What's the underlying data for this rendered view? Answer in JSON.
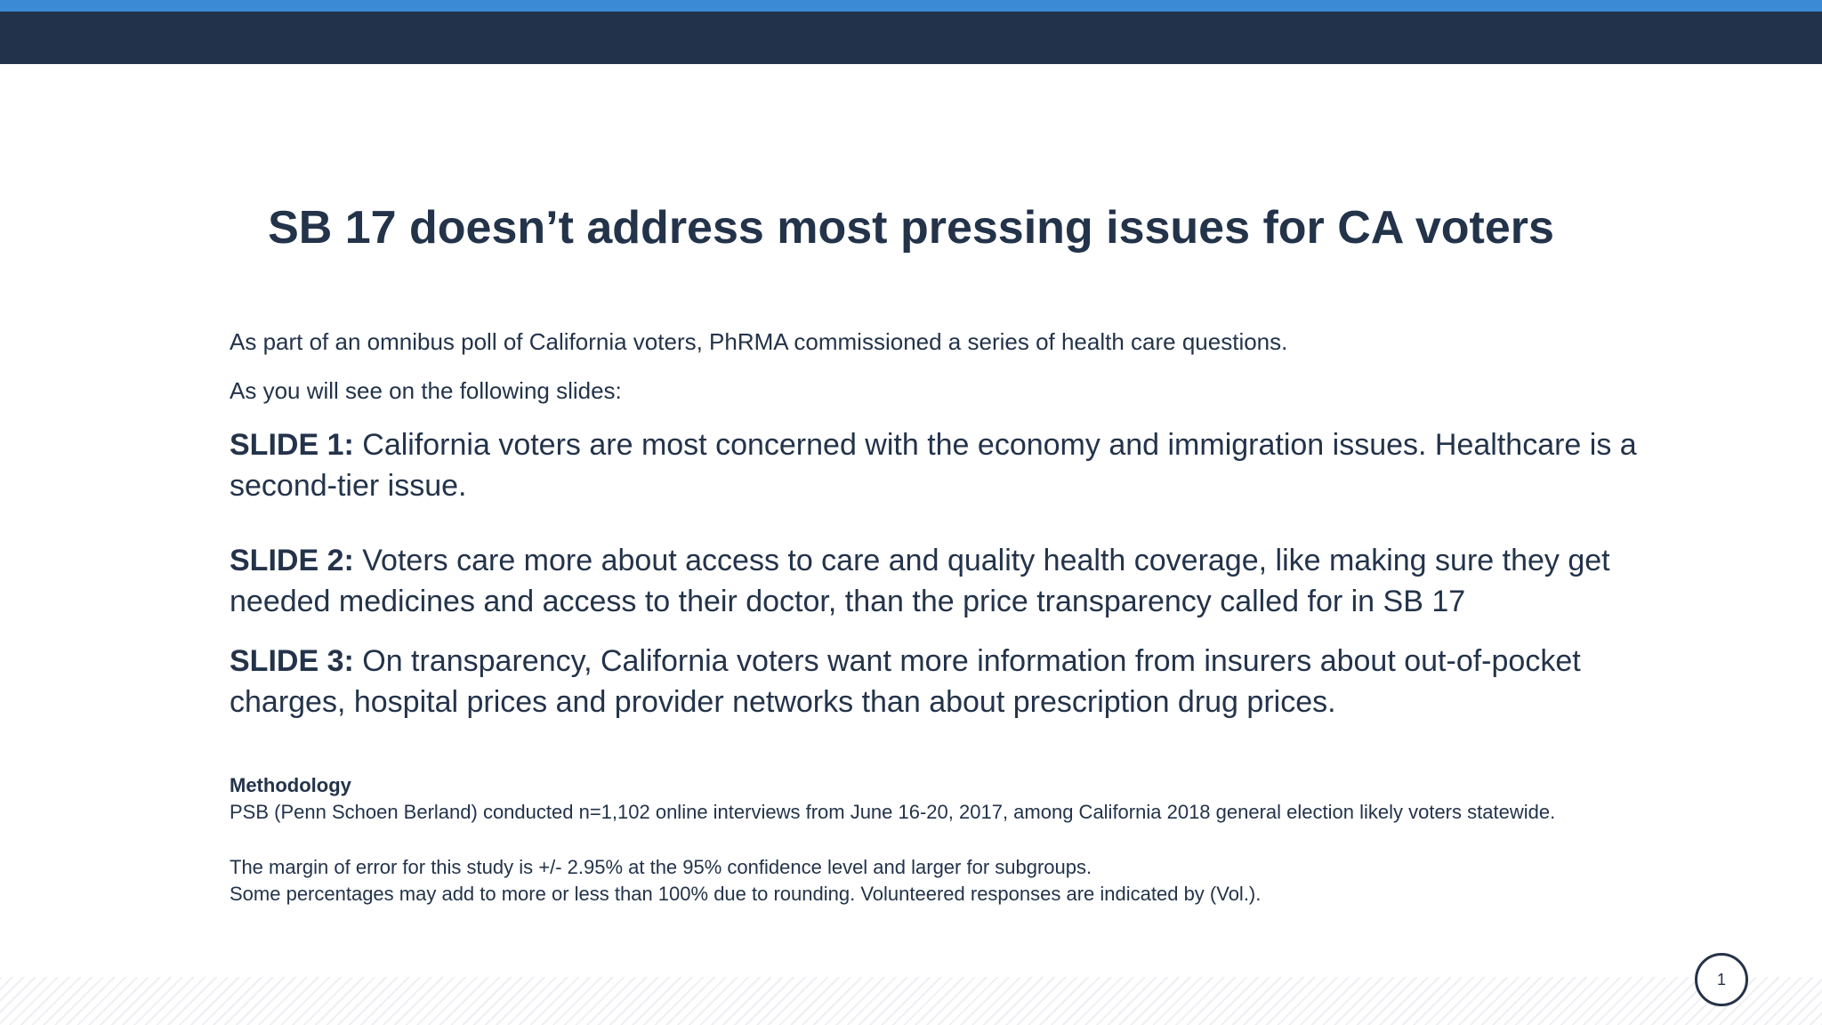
{
  "colors": {
    "accent_stripe": "#3a8ad6",
    "header_band": "#22324a",
    "text": "#23334a"
  },
  "title": "SB 17 doesn’t address most pressing issues for CA voters",
  "intro": [
    "As part of an omnibus poll of California voters, PhRMA commissioned a series of health care questions.",
    "As you will see on the following slides:"
  ],
  "points": [
    {
      "lead": "SLIDE 1:",
      "text": " California voters are most concerned with the economy and immigration issues. Healthcare is a second-tier issue."
    },
    {
      "lead": "SLIDE 2:",
      "text": " Voters care more about access to care and quality health coverage, like making sure they get needed medicines and access to their doctor, than the price transparency called for in SB 17"
    },
    {
      "lead": "SLIDE 3:",
      "text": " On transparency, California voters want more information from insurers about out-of-pocket charges, hospital prices and provider networks than about prescription drug prices."
    }
  ],
  "methodology": {
    "heading": "Methodology",
    "line1": "PSB (Penn Schoen Berland) conducted n=1,102 online interviews from June 16-20, 2017, among California 2018 general election likely voters statewide.",
    "line2": "The margin of error for this study is +/- 2.95% at the 95% confidence level and larger for subgroups.",
    "line3": "Some percentages may add to more or less than 100% due to rounding. Volunteered responses are indicated by (Vol.)."
  },
  "page_number": "1"
}
